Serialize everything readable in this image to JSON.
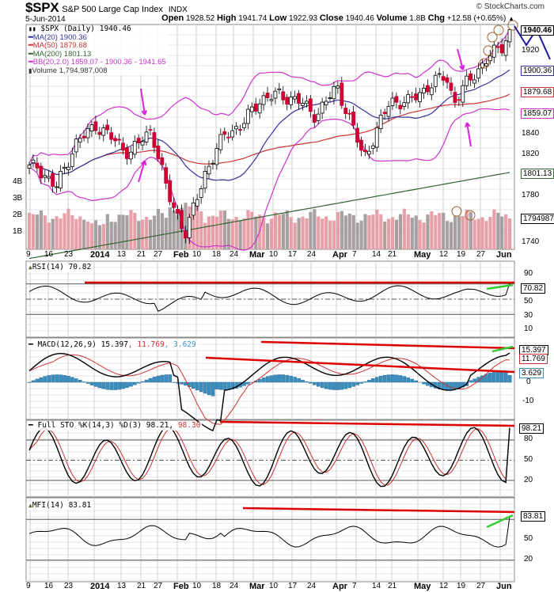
{
  "header": {
    "ticker": "$SPX",
    "name": "S&P 500 Large Cap Index",
    "exchange": "INDX",
    "credit": "© StockCharts.com",
    "date": "5-Jun-2014",
    "open_label": "Open",
    "open": "1928.52",
    "high_label": "High",
    "high": "1941.74",
    "low_label": "Low",
    "low": "1922.93",
    "close_label": "Close",
    "close": "1940.46",
    "volume_label": "Volume",
    "volume": "1.8B",
    "chg_label": "Chg",
    "chg": "+12.58 (+0.65%)",
    "chg_arrow": "▲"
  },
  "price_panel": {
    "legend": {
      "main": "$SPX (Daily) 1940.46",
      "ma20": "MA(20) 1900.36",
      "ma50": "MA(50) 1879.68",
      "ma200": "MA(200) 1801.13",
      "bb": "BB(20,2.0) 1859.07 - 1900.36 - 1941.65",
      "volume": "Volume 1,794,987,008"
    },
    "right_axis": [
      "1920",
      "1840",
      "1820",
      "1780",
      "1740"
    ],
    "tags": {
      "close": "1940.46",
      "ma20": "1900.36",
      "ma50": "1879.68",
      "bb_lower": "1859.07",
      "ma200": "1801.13",
      "volume": "1794987"
    },
    "volume_axis": [
      "4B",
      "3B",
      "2B",
      "1B"
    ]
  },
  "x_axis": [
    {
      "label": "9",
      "bold": false
    },
    {
      "label": "16",
      "bold": false
    },
    {
      "label": "23",
      "bold": false
    },
    {
      "label": "2014",
      "bold": true
    },
    {
      "label": "13",
      "bold": false
    },
    {
      "label": "21",
      "bold": false
    },
    {
      "label": "27",
      "bold": false
    },
    {
      "label": "Feb",
      "bold": true
    },
    {
      "label": "10",
      "bold": false
    },
    {
      "label": "18",
      "bold": false
    },
    {
      "label": "24",
      "bold": false
    },
    {
      "label": "Mar",
      "bold": true
    },
    {
      "label": "10",
      "bold": false
    },
    {
      "label": "17",
      "bold": false
    },
    {
      "label": "24",
      "bold": false
    },
    {
      "label": "Apr",
      "bold": true
    },
    {
      "label": "7",
      "bold": false
    },
    {
      "label": "14",
      "bold": false
    },
    {
      "label": "21",
      "bold": false
    },
    {
      "label": "May",
      "bold": true
    },
    {
      "label": "12",
      "bold": false
    },
    {
      "label": "19",
      "bold": false
    },
    {
      "label": "27",
      "bold": false
    },
    {
      "label": "Jun",
      "bold": true
    }
  ],
  "rsi_panel": {
    "legend": "RSI(14) 70.82",
    "axis": [
      "90",
      "50",
      "30",
      "10"
    ],
    "tag": "70.82"
  },
  "macd_panel": {
    "legend_prefix": "MACD(12,26,9)",
    "macd": "15.397",
    "signal": "11.769",
    "hist": "3.629",
    "axis": [
      "0",
      "-10"
    ],
    "tags": {
      "macd": "15.397",
      "signal": "11.769",
      "hist": "3.629"
    }
  },
  "sto_panel": {
    "legend_prefix": "Full STO %K(14,3) %D(3)",
    "k": "98.21",
    "d": "98.30",
    "axis": [
      "80",
      "50",
      "20"
    ],
    "tag": "98.21"
  },
  "mfi_panel": {
    "legend": "MFI(14) 83.81",
    "axis": [
      "50",
      "20"
    ],
    "tag": "83.81"
  },
  "colors": {
    "up": "#ffffff",
    "down": "#cc0033",
    "ma20": "#333399",
    "ma50": "#cc3333",
    "ma200": "#336633",
    "bb": "#cc33cc",
    "vol_up": "#e8a0a8",
    "vol_down": "#a8a0a0",
    "annot_red": "#dd0000",
    "annot_green": "#33cc33",
    "annot_magenta": "#dd22dd",
    "macd_hist": "#3a8fc0"
  },
  "chart_data": [
    {
      "type": "candlestick",
      "title": "$SPX S&P 500 Large Cap Index (Daily)",
      "x_range": [
        "2013-12-06",
        "2014-06-05"
      ],
      "ylim": [
        1735,
        1950
      ],
      "last": {
        "open": 1928.52,
        "high": 1941.74,
        "low": 1922.93,
        "close": 1940.46,
        "volume": 1794987008
      },
      "overlays": {
        "MA20": 1900.36,
        "MA50": 1879.68,
        "MA200": 1801.13,
        "BB_lower": 1859.07,
        "BB_mid": 1900.36,
        "BB_upper": 1941.65
      },
      "approx_closes": [
        {
          "x": "2013-12-09",
          "y": 1808
        },
        {
          "x": "2013-12-16",
          "y": 1786
        },
        {
          "x": "2013-12-23",
          "y": 1828
        },
        {
          "x": "2013-12-31",
          "y": 1848
        },
        {
          "x": "2014-01-13",
          "y": 1820
        },
        {
          "x": "2014-01-21",
          "y": 1844
        },
        {
          "x": "2014-01-27",
          "y": 1782
        },
        {
          "x": "2014-02-03",
          "y": 1742
        },
        {
          "x": "2014-02-10",
          "y": 1800
        },
        {
          "x": "2014-02-18",
          "y": 1840
        },
        {
          "x": "2014-02-24",
          "y": 1847
        },
        {
          "x": "2014-03-03",
          "y": 1873
        },
        {
          "x": "2014-03-10",
          "y": 1877
        },
        {
          "x": "2014-03-17",
          "y": 1872
        },
        {
          "x": "2014-03-24",
          "y": 1857
        },
        {
          "x": "2014-04-01",
          "y": 1885
        },
        {
          "x": "2014-04-07",
          "y": 1845
        },
        {
          "x": "2014-04-11",
          "y": 1815
        },
        {
          "x": "2014-04-21",
          "y": 1871
        },
        {
          "x": "2014-04-28",
          "y": 1870
        },
        {
          "x": "2014-05-05",
          "y": 1885
        },
        {
          "x": "2014-05-12",
          "y": 1896
        },
        {
          "x": "2014-05-15",
          "y": 1870
        },
        {
          "x": "2014-05-19",
          "y": 1885
        },
        {
          "x": "2014-05-27",
          "y": 1911
        },
        {
          "x": "2014-06-02",
          "y": 1924
        },
        {
          "x": "2014-06-05",
          "y": 1940.46
        }
      ],
      "volume_axis": [
        "1B",
        "2B",
        "3B",
        "4B"
      ]
    },
    {
      "type": "line",
      "title": "RSI(14)",
      "last": 70.82,
      "ylim": [
        0,
        100
      ],
      "levels": [
        30,
        50,
        70
      ]
    },
    {
      "type": "line",
      "title": "MACD(12,26,9)",
      "series": [
        {
          "name": "MACD",
          "last": 15.397
        },
        {
          "name": "Signal",
          "last": 11.769
        },
        {
          "name": "Histogram",
          "last": 3.629
        }
      ],
      "ylim": [
        -20,
        20
      ]
    },
    {
      "type": "line",
      "title": "Full STO %K(14,3) %D(3)",
      "series": [
        {
          "name": "%K",
          "last": 98.21
        },
        {
          "name": "%D",
          "last": 98.3
        }
      ],
      "ylim": [
        0,
        100
      ],
      "levels": [
        20,
        50,
        80
      ]
    },
    {
      "type": "line",
      "title": "MFI(14)",
      "last": 83.81,
      "ylim": [
        0,
        100
      ],
      "levels": [
        20,
        50,
        80
      ]
    }
  ]
}
